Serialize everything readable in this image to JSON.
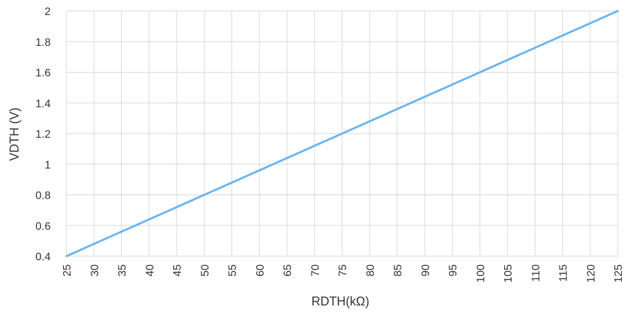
{
  "chart_data": {
    "type": "line",
    "title": "",
    "xlabel": "RDTH(kΩ)",
    "ylabel": "VDTH (V)",
    "xlim": [
      25,
      125
    ],
    "ylim": [
      0.4,
      2
    ],
    "x_ticks": [
      "25",
      "30",
      "35",
      "40",
      "45",
      "50",
      "55",
      "60",
      "65",
      "70",
      "75",
      "80",
      "85",
      "90",
      "95",
      "100",
      "105",
      "110",
      "115",
      "120",
      "125"
    ],
    "y_ticks": [
      "0.4",
      "0.6",
      "0.8",
      "1",
      "1.2",
      "1.4",
      "1.6",
      "1.8",
      "2"
    ],
    "grid": true,
    "series": [
      {
        "color": "#6cb4ee",
        "x": [
          25,
          125
        ],
        "y": [
          0.4,
          2
        ]
      }
    ]
  }
}
